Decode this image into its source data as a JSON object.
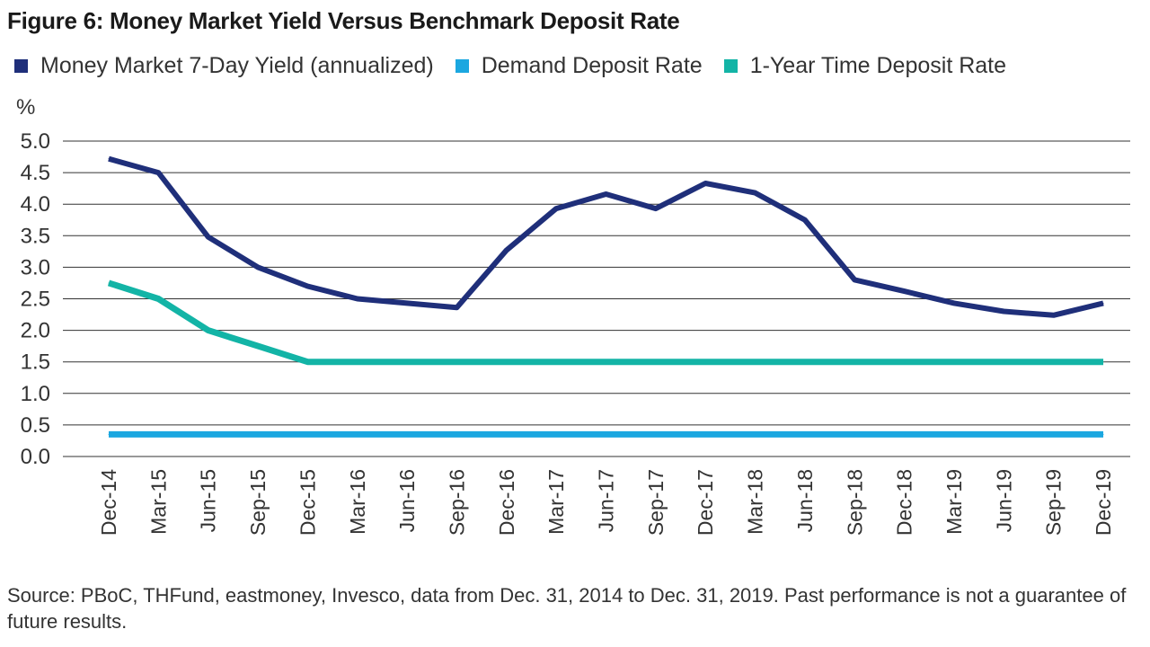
{
  "title": "Figure 6: Money Market Yield Versus Benchmark Deposit Rate",
  "unit_label": "%",
  "source_note": "Source: PBoC, THFund, eastmoney, Invesco, data from Dec. 31, 2014 to Dec. 31, 2019. Past performance is not a guarantee of future results.",
  "colors": {
    "money_market": "#1f2f7a",
    "demand_deposit": "#1ba7e0",
    "time_deposit": "#13b4a6",
    "grid": "#333333"
  },
  "chart_data": {
    "type": "line",
    "title": "Figure 6: Money Market Yield Versus Benchmark Deposit Rate",
    "xlabel": "",
    "ylabel": "%",
    "ylim": [
      0,
      5
    ],
    "yticks": [
      "5.0",
      "4.5",
      "4.0",
      "3.5",
      "3.0",
      "2.5",
      "2.0",
      "1.5",
      "1.0",
      "0.5",
      "0.0"
    ],
    "grid": true,
    "legend_position": "top-left",
    "categories": [
      "Dec-14",
      "Mar-15",
      "Jun-15",
      "Sep-15",
      "Dec-15",
      "Mar-16",
      "Jun-16",
      "Sep-16",
      "Dec-16",
      "Mar-17",
      "Jun-17",
      "Sep-17",
      "Dec-17",
      "Mar-18",
      "Jun-18",
      "Sep-18",
      "Dec-18",
      "Mar-19",
      "Jun-19",
      "Sep-19",
      "Dec-19"
    ],
    "series": [
      {
        "name": "Money Market 7-Day Yield (annualized)",
        "color": "#1f2f7a",
        "values": [
          4.72,
          4.5,
          3.48,
          3.0,
          2.7,
          2.5,
          2.43,
          2.36,
          3.27,
          3.93,
          4.16,
          3.93,
          4.33,
          4.18,
          3.75,
          2.8,
          2.62,
          2.43,
          2.3,
          2.24,
          2.43
        ]
      },
      {
        "name": "Demand Deposit Rate",
        "color": "#1ba7e0",
        "values": [
          0.35,
          0.35,
          0.35,
          0.35,
          0.35,
          0.35,
          0.35,
          0.35,
          0.35,
          0.35,
          0.35,
          0.35,
          0.35,
          0.35,
          0.35,
          0.35,
          0.35,
          0.35,
          0.35,
          0.35,
          0.35
        ]
      },
      {
        "name": "1-Year Time Deposit Rate",
        "color": "#13b4a6",
        "values": [
          2.75,
          2.5,
          2.0,
          1.75,
          1.5,
          1.5,
          1.5,
          1.5,
          1.5,
          1.5,
          1.5,
          1.5,
          1.5,
          1.5,
          1.5,
          1.5,
          1.5,
          1.5,
          1.5,
          1.5,
          1.5
        ]
      }
    ]
  }
}
